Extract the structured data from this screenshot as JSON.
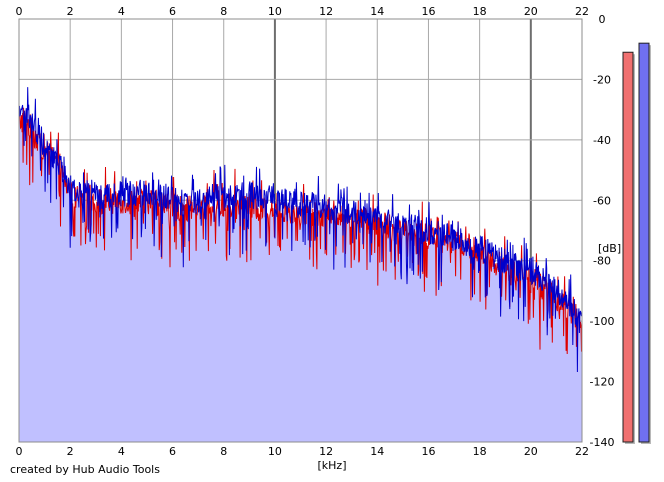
{
  "chart_data": {
    "type": "area",
    "x_unit": "[kHz]",
    "y_unit": "[dB]",
    "xlim": [
      0,
      22
    ],
    "ylim": [
      -140,
      0
    ],
    "x_ticks": [
      0,
      2,
      4,
      6,
      8,
      10,
      12,
      14,
      16,
      18,
      20,
      22
    ],
    "y_ticks": [
      0,
      -20,
      -40,
      -60,
      -80,
      -100,
      -120,
      -140
    ],
    "grid": true,
    "series": [
      {
        "color": "#dd0000",
        "x": [
          0,
          0.25,
          0.5,
          0.75,
          1,
          1.5,
          2,
          2.5,
          3,
          3.5,
          4,
          4.5,
          5,
          5.5,
          6,
          6.5,
          7,
          7.5,
          8,
          8.5,
          9,
          9.5,
          10,
          10.5,
          11,
          11.5,
          12,
          12.5,
          13,
          13.5,
          14,
          14.5,
          15,
          15.5,
          16,
          16.5,
          17,
          17.5,
          18,
          18.5,
          19,
          19.5,
          20,
          20.5,
          21,
          21.5,
          22
        ],
        "values": [
          -34,
          -33,
          -37,
          -40,
          -43,
          -48,
          -58,
          -60,
          -60,
          -61,
          -60,
          -61,
          -60,
          -61,
          -62,
          -63,
          -63,
          -62,
          -62,
          -62,
          -62,
          -63,
          -63,
          -63,
          -64,
          -64,
          -65,
          -66,
          -67,
          -67,
          -68,
          -69,
          -70,
          -71,
          -72,
          -73,
          -74,
          -75,
          -77,
          -80,
          -82,
          -84,
          -86,
          -89,
          -92,
          -96,
          -101
        ]
      },
      {
        "color": "#0000cc",
        "x": [
          0,
          0.25,
          0.5,
          0.75,
          1,
          1.5,
          2,
          2.5,
          3,
          3.5,
          4,
          4.5,
          5,
          5.5,
          6,
          6.5,
          7,
          7.5,
          8,
          8.5,
          9,
          9.5,
          10,
          10.5,
          11,
          11.5,
          12,
          12.5,
          13,
          13.5,
          14,
          14.5,
          15,
          15.5,
          16,
          16.5,
          17,
          17.5,
          18,
          18.5,
          19,
          19.5,
          20,
          20.5,
          21,
          21.5,
          22
        ],
        "values": [
          -33,
          -31,
          -32,
          -38,
          -42,
          -47,
          -57,
          -58,
          -58,
          -59,
          -58,
          -58,
          -57,
          -58,
          -60,
          -61,
          -60,
          -59,
          -59,
          -58,
          -58,
          -59,
          -60,
          -60,
          -61,
          -61,
          -62,
          -63,
          -64,
          -64,
          -66,
          -67,
          -68,
          -69,
          -70,
          -71,
          -73,
          -74,
          -76,
          -78,
          -80,
          -82,
          -83,
          -86,
          -90,
          -94,
          -101
        ]
      }
    ],
    "level_meters": [
      {
        "color": "#f07070",
        "level_db": -11
      },
      {
        "color": "#7070f0",
        "level_db": -8
      }
    ]
  },
  "credit": "created by Hub Audio Tools"
}
